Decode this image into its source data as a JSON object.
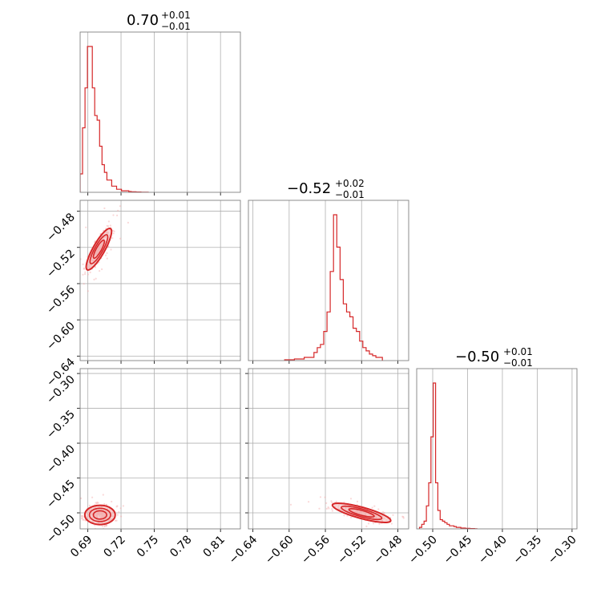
{
  "chart_data": {
    "type": "corner",
    "parameters": [
      {
        "title_value": "0.70",
        "err_plus": "+0.01",
        "err_minus": "−0.01",
        "range": [
          0.683,
          0.828
        ],
        "ticks": [
          0.69,
          0.72,
          0.75,
          0.78,
          0.81
        ],
        "tick_labels": [
          "0.69",
          "0.72",
          "0.75",
          "0.78",
          "0.81"
        ]
      },
      {
        "title_value": "−0.52",
        "err_plus": "+0.02",
        "err_minus": "−0.01",
        "range": [
          -0.645,
          -0.468
        ],
        "ticks": [
          -0.64,
          -0.6,
          -0.56,
          -0.52,
          -0.48
        ],
        "tick_labels": [
          "−0.64",
          "−0.60",
          "−0.56",
          "−0.52",
          "−0.48"
        ]
      },
      {
        "title_value": "−0.50",
        "err_plus": "+0.01",
        "err_minus": "−0.01",
        "range": [
          -0.523,
          -0.293
        ],
        "ticks": [
          -0.5,
          -0.45,
          -0.4,
          -0.35,
          -0.3
        ],
        "tick_labels": [
          "−0.50",
          "−0.45",
          "−0.40",
          "−0.35",
          "−0.30"
        ]
      }
    ],
    "y_tick_labels_row1": [
      "−0.48",
      "−0.52",
      "−0.56",
      "−0.60",
      "−0.64"
    ],
    "y_tick_labels_row2": [
      "−0.30",
      "−0.35",
      "−0.40",
      "−0.45",
      "−0.50"
    ],
    "histograms": [
      {
        "bin_start": 0.683,
        "bin_width": 0.0022,
        "counts": [
          0.12,
          0.42,
          0.68,
          0.95,
          0.95,
          0.68,
          0.5,
          0.47,
          0.3,
          0.18,
          0.13,
          0.08,
          0.08,
          0.04,
          0.04,
          0.02,
          0.02,
          0.01,
          0.01,
          0.01,
          0.005,
          0.003,
          0.003,
          0.002,
          0.002,
          0.001,
          0.001,
          0.0005
        ]
      },
      {
        "bin_start": -0.605,
        "bin_width": 0.0036,
        "counts": [
          0.005,
          0.005,
          0.005,
          0.01,
          0.01,
          0.01,
          0.02,
          0.02,
          0.02,
          0.05,
          0.08,
          0.1,
          0.18,
          0.3,
          0.55,
          0.9,
          0.7,
          0.5,
          0.35,
          0.3,
          0.27,
          0.2,
          0.18,
          0.12,
          0.08,
          0.06,
          0.04,
          0.03,
          0.02,
          0.02
        ]
      },
      {
        "bin_start": -0.519,
        "bin_width": 0.0033,
        "counts": [
          0.01,
          0.03,
          0.05,
          0.15,
          0.3,
          0.6,
          0.95,
          0.3,
          0.12,
          0.06,
          0.05,
          0.04,
          0.03,
          0.02,
          0.02,
          0.015,
          0.01,
          0.01,
          0.005,
          0.005,
          0.003,
          0.003,
          0.002,
          0.002,
          0.001
        ]
      }
    ],
    "scatter_clouds": [
      {
        "pair": [
          0,
          1
        ],
        "center": [
          0.7,
          -0.522
        ],
        "spread": [
          0.005,
          0.01
        ],
        "correlation": 0.85,
        "n": 420
      },
      {
        "pair": [
          0,
          2
        ],
        "center": [
          0.701,
          -0.503
        ],
        "spread": [
          0.006,
          0.006
        ],
        "correlation": 0.0,
        "n": 380
      },
      {
        "pair": [
          1,
          2
        ],
        "center": [
          -0.52,
          -0.5
        ],
        "spread": [
          0.014,
          0.006
        ],
        "correlation": -0.8,
        "n": 380
      }
    ],
    "contour_levels": [
      1.0,
      1.6,
      2.3
    ],
    "grid": true,
    "color": "#d62728"
  }
}
